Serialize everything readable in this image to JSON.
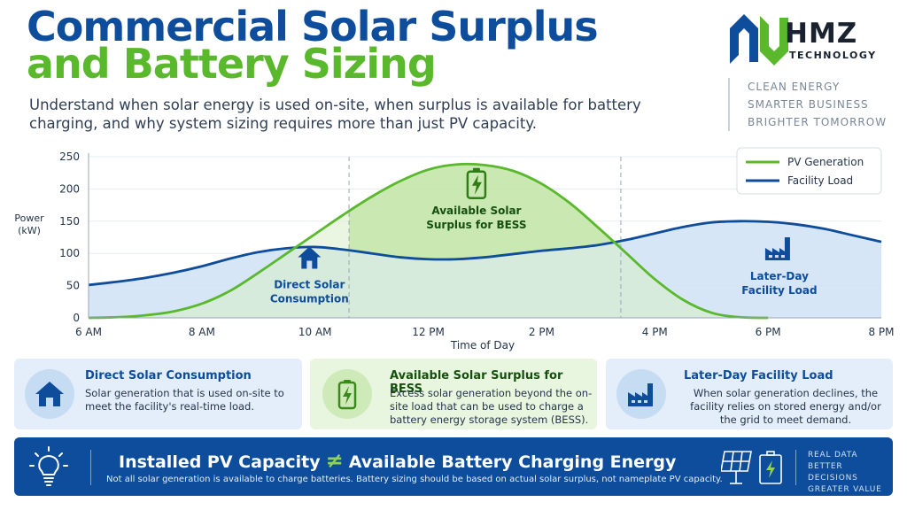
{
  "header": {
    "title_line1": "Commercial Solar Surplus",
    "title_line2": "and Battery Sizing",
    "subtitle": "Understand when solar energy is used on-site, when surplus is available for battery charging, and why system sizing requires more than just PV capacity."
  },
  "brand": {
    "name": "HMZ",
    "sub": "TECHNOLOGY",
    "taglines": [
      "CLEAN ENERGY",
      "SMARTER BUSINESS",
      "BRIGHTER TOMORROW"
    ]
  },
  "chart_data": {
    "type": "area",
    "xlabel": "Time of Day",
    "ylabel": "Power (kW)",
    "ylim": [
      0,
      250
    ],
    "yticks": [
      0,
      50,
      100,
      150,
      200,
      250
    ],
    "xticks": [
      "6 AM",
      "8 AM",
      "10 AM",
      "12 PM",
      "2 PM",
      "4 PM",
      "6 PM",
      "8 PM"
    ],
    "x": [
      6,
      6.5,
      7,
      7.5,
      8,
      8.5,
      9,
      9.5,
      10,
      10.5,
      11,
      11.5,
      12,
      12.5,
      13,
      13.5,
      14,
      14.5,
      15,
      15.5,
      16,
      16.5,
      17,
      17.5,
      18,
      18.5,
      19,
      19.5,
      20
    ],
    "series": [
      {
        "name": "PV Generation",
        "color": "#5ab82d",
        "values": [
          0,
          1,
          4,
          10,
          22,
          42,
          70,
          100,
          130,
          160,
          188,
          212,
          230,
          238,
          237,
          228,
          208,
          178,
          140,
          100,
          60,
          28,
          8,
          1,
          0,
          null,
          null,
          null,
          null
        ]
      },
      {
        "name": "Facility Load",
        "color": "#0d4d9c",
        "values": [
          51,
          56,
          62,
          70,
          80,
          92,
          102,
          108,
          110,
          106,
          100,
          94,
          91,
          91,
          94,
          99,
          104,
          108,
          113,
          121,
          131,
          141,
          148,
          150,
          149,
          145,
          138,
          128,
          118
        ]
      }
    ],
    "dividers": [
      10.6,
      15.4
    ],
    "annotations": [
      {
        "label_line1": "Direct Solar",
        "label_line2": "Consumption",
        "x": 9.9,
        "y": 35,
        "icon": "house-icon"
      },
      {
        "label_line1": "Available Solar",
        "label_line2": "Surplus for BESS",
        "x": 12.85,
        "y": 150,
        "icon": "battery-icon"
      },
      {
        "label_line1": "Later-Day",
        "label_line2": "Facility Load",
        "x": 18.2,
        "y": 48,
        "icon": "factory-icon"
      }
    ],
    "legend_position": "top-right"
  },
  "cards": [
    {
      "title": "Direct Solar Consumption",
      "desc": "Solar generation that is used on-site to meet the facility's real-time load.",
      "icon": "house-icon"
    },
    {
      "title": "Available Solar Surplus for BESS",
      "desc": "Excess solar generation beyond the on-site load that can be used to charge a battery energy storage system (BESS).",
      "icon": "battery-icon"
    },
    {
      "title": "Later-Day Facility Load",
      "desc": "When solar generation declines, the facility relies on stored energy and/or the grid to meet demand.",
      "icon": "factory-icon"
    }
  ],
  "banner": {
    "left": "Installed PV Capacity",
    "neq": "≠",
    "right": "Available Battery Charging Energy",
    "note": "Not all solar generation is available to charge batteries. Battery sizing should be based on actual solar surplus, not nameplate PV capacity.",
    "tags": [
      "REAL DATA",
      "BETTER DECISIONS",
      "GREATER VALUE"
    ]
  }
}
